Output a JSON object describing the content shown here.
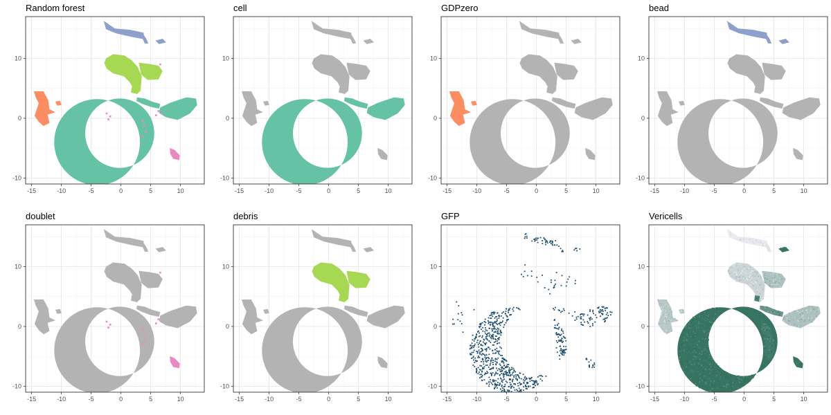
{
  "chart_data": {
    "type": "scatter",
    "kind": "umap-facets",
    "xlim": [
      -16,
      14
    ],
    "ylim": [
      -11,
      17
    ],
    "x_ticks": [
      -15,
      -10,
      -5,
      0,
      5,
      10
    ],
    "y_ticks": [
      -10,
      0,
      10
    ],
    "grid": true,
    "legend": "none",
    "clusters": [
      {
        "id": "c1",
        "shape": "arc",
        "cx": -4,
        "cy": -4,
        "r_outer": 7.2,
        "r_inner": 5.8,
        "inner_dx": 3.8,
        "inner_dy": 1.5
      },
      {
        "id": "c2",
        "shape": "poly",
        "points": [
          [
            2.8,
            1.6
          ],
          [
            4.4,
            -0.3
          ],
          [
            5.0,
            -2.2
          ],
          [
            5.1,
            -4.3
          ],
          [
            4.5,
            -5.6
          ],
          [
            3.7,
            -5.5
          ],
          [
            3.3,
            -4.0
          ],
          [
            3.4,
            -2.0
          ],
          [
            2.9,
            -0.6
          ]
        ]
      },
      {
        "id": "c3",
        "shape": "poly",
        "points": [
          [
            6.6,
            1.8
          ],
          [
            8.3,
            2.6
          ],
          [
            9.5,
            3.0
          ],
          [
            11.0,
            3.5
          ],
          [
            12.6,
            3.3
          ],
          [
            12.8,
            2.2
          ],
          [
            11.6,
            0.8
          ],
          [
            9.5,
            -0.3
          ],
          [
            7.5,
            0.2
          ],
          [
            6.4,
            0.9
          ]
        ]
      },
      {
        "id": "c4",
        "shape": "poly",
        "points": [
          [
            2.7,
            3.5
          ],
          [
            4.0,
            3.3
          ],
          [
            5.2,
            2.8
          ],
          [
            6.6,
            2.4
          ],
          [
            6.4,
            1.6
          ],
          [
            5.0,
            1.9
          ],
          [
            3.6,
            2.4
          ],
          [
            2.6,
            2.9
          ]
        ]
      },
      {
        "id": "c5",
        "shape": "poly",
        "points": [
          [
            -2.5,
            10.0
          ],
          [
            -1.3,
            10.7
          ],
          [
            0.6,
            10.5
          ],
          [
            1.8,
            9.7
          ],
          [
            2.8,
            8.6
          ],
          [
            3.5,
            7.0
          ],
          [
            3.3,
            4.6
          ],
          [
            2.6,
            4.0
          ],
          [
            1.5,
            6.0
          ],
          [
            0.5,
            7.0
          ],
          [
            -1.3,
            7.5
          ],
          [
            -2.4,
            8.3
          ],
          [
            -2.8,
            9.2
          ]
        ]
      },
      {
        "id": "c6",
        "shape": "poly",
        "points": [
          [
            3.0,
            9.3
          ],
          [
            4.6,
            9.1
          ],
          [
            6.3,
            8.8
          ],
          [
            7.0,
            7.9
          ],
          [
            6.3,
            6.5
          ],
          [
            4.5,
            6.4
          ],
          [
            3.4,
            7.3
          ]
        ]
      },
      {
        "id": "c7",
        "shape": "poly",
        "points": [
          [
            -14.6,
            4.5
          ],
          [
            -13.0,
            4.5
          ],
          [
            -12.2,
            3.0
          ],
          [
            -12.0,
            1.5
          ],
          [
            -11.0,
            1.0
          ],
          [
            -12.3,
            0.6
          ],
          [
            -12.0,
            -0.8
          ],
          [
            -13.0,
            -1.3
          ],
          [
            -13.8,
            -0.6
          ],
          [
            -14.5,
            0.4
          ],
          [
            -13.8,
            2.5
          ],
          [
            -14.3,
            3.5
          ]
        ]
      },
      {
        "id": "c8",
        "shape": "poly",
        "points": [
          [
            -2.9,
            16.3
          ],
          [
            -1.0,
            15.0
          ],
          [
            1.5,
            14.8
          ],
          [
            3.8,
            14.3
          ],
          [
            3.9,
            13.2
          ],
          [
            1.8,
            13.6
          ],
          [
            -0.8,
            14.2
          ],
          [
            -2.5,
            14.9
          ]
        ]
      },
      {
        "id": "c9",
        "shape": "poly",
        "points": [
          [
            3.8,
            14.0
          ],
          [
            4.3,
            13.2
          ],
          [
            4.6,
            12.5
          ],
          [
            4.0,
            12.5
          ],
          [
            3.6,
            13.4
          ]
        ]
      },
      {
        "id": "c10",
        "shape": "poly",
        "points": [
          [
            5.8,
            13.0
          ],
          [
            7.0,
            13.3
          ],
          [
            7.6,
            12.7
          ],
          [
            6.4,
            12.4
          ]
        ]
      },
      {
        "id": "c11",
        "shape": "poly",
        "points": [
          [
            8.2,
            -5.0
          ],
          [
            9.0,
            -5.3
          ],
          [
            9.9,
            -6.2
          ],
          [
            9.8,
            -7.0
          ],
          [
            8.8,
            -6.8
          ],
          [
            8.3,
            -6.0
          ]
        ]
      },
      {
        "id": "c12",
        "shape": "poly",
        "points": [
          [
            -11.0,
            2.8
          ],
          [
            -10.2,
            2.9
          ],
          [
            -10.0,
            2.2
          ],
          [
            -10.7,
            2.1
          ]
        ]
      },
      {
        "id": "c13",
        "shape": "poly",
        "points": [
          [
            1.8,
            5.2
          ],
          [
            2.6,
            5.1
          ],
          [
            2.5,
            4.1
          ],
          [
            1.7,
            4.3
          ]
        ]
      }
    ],
    "panels": [
      {
        "title": "Random forest",
        "mode": "categorical",
        "colors": {
          "c1": "#66c2a5",
          "c2": "#66c2a5",
          "c3": "#66c2a5",
          "c4": "#66c2a5",
          "c5": "#a6d854",
          "c6": "#a6d854",
          "c7": "#fc8d62",
          "c8": "#8da0cb",
          "c9": "#8da0cb",
          "c10": "#8da0cb",
          "c11": "#e78ac3",
          "c12": "#fc8d62",
          "c13": "#a6d854"
        },
        "specks": "#e78ac3"
      },
      {
        "title": "cell",
        "mode": "categorical",
        "colors": {
          "c1": "#66c2a5",
          "c2": "#66c2a5",
          "c3": "#66c2a5",
          "c4": "#66c2a5"
        }
      },
      {
        "title": "GDPzero",
        "mode": "categorical",
        "colors": {
          "c7": "#fc8d62",
          "c12": "#fc8d62"
        }
      },
      {
        "title": "bead",
        "mode": "categorical",
        "colors": {
          "c8": "#8da0cb",
          "c9": "#8da0cb",
          "c10": "#8da0cb"
        }
      },
      {
        "title": "doublet",
        "mode": "categorical",
        "colors": {
          "c11": "#e78ac3"
        },
        "specks": "#e78ac3"
      },
      {
        "title": "debris",
        "mode": "categorical",
        "colors": {
          "c5": "#a6d854",
          "c6": "#a6d854",
          "c13": "#a6d854"
        }
      },
      {
        "title": "GFP",
        "mode": "sparse",
        "color": "#1f4e6e",
        "density": {
          "c1": 0.55,
          "c2": 0.6,
          "c3": 0.35,
          "c4": 0.3,
          "c5": 0.06,
          "c6": 0.08,
          "c7": 0.08,
          "c8": 0.45,
          "c9": 0.4,
          "c10": 0.45,
          "c11": 0.55,
          "c12": 0.1,
          "c13": 0.05
        }
      },
      {
        "title": "Vericells",
        "mode": "gradient",
        "high": "#2e6e5a",
        "low": "#f2eef5",
        "level": {
          "c1": 0.95,
          "c2": 0.9,
          "c3": 0.35,
          "c4": 0.7,
          "c5": 0.2,
          "c6": 0.35,
          "c7": 0.3,
          "c8": 0.05,
          "c9": 0.1,
          "c10": 0.95,
          "c11": 0.95,
          "c12": 0.3,
          "c13": 0.85
        }
      }
    ],
    "background_color": "#b3b3b3"
  }
}
